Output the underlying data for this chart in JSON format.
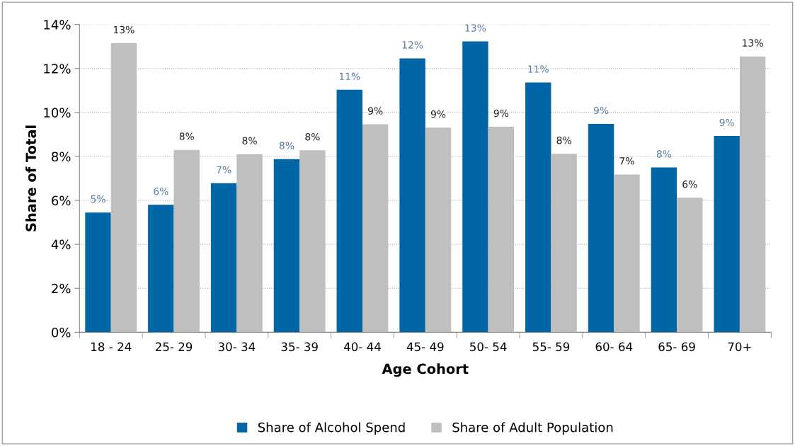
{
  "chart_data": {
    "type": "bar",
    "xlabel": "Age Cohort",
    "ylabel": "Share of Total",
    "categories": [
      "18 - 24",
      "25- 29",
      "30- 34",
      "35- 39",
      "40- 44",
      "45- 49",
      "50- 54",
      "55- 59",
      "60- 64",
      "65- 69",
      "70+"
    ],
    "series": [
      {
        "name": "Share of Alcohol Spend",
        "color": "#0066a6",
        "values": [
          5.45,
          5.8,
          6.78,
          7.88,
          11.03,
          12.46,
          13.23,
          11.36,
          9.48,
          7.5,
          8.93
        ],
        "value_labels": [
          "5%",
          "6%",
          "7%",
          "8%",
          "11%",
          "12%",
          "13%",
          "11%",
          "9%",
          "8%",
          "9%"
        ]
      },
      {
        "name": "Share of Adult Population",
        "color": "#bfbfbf",
        "values": [
          13.15,
          8.3,
          8.1,
          8.28,
          9.46,
          9.31,
          9.35,
          8.12,
          7.18,
          6.12,
          12.55
        ],
        "value_labels": [
          "13%",
          "8%",
          "8%",
          "8%",
          "9%",
          "9%",
          "9%",
          "8%",
          "7%",
          "6%",
          "13%"
        ]
      }
    ],
    "ylim": [
      0,
      14
    ],
    "yticks": [
      {
        "value": 0,
        "label": "0%"
      },
      {
        "value": 2,
        "label": "2%"
      },
      {
        "value": 4,
        "label": "4%"
      },
      {
        "value": 6,
        "label": "6%"
      },
      {
        "value": 8,
        "label": "8%"
      },
      {
        "value": 10,
        "label": "10%"
      },
      {
        "value": 12,
        "label": "12%"
      },
      {
        "value": 14,
        "label": "14%"
      }
    ],
    "grid": "y",
    "legend": "bottom"
  }
}
